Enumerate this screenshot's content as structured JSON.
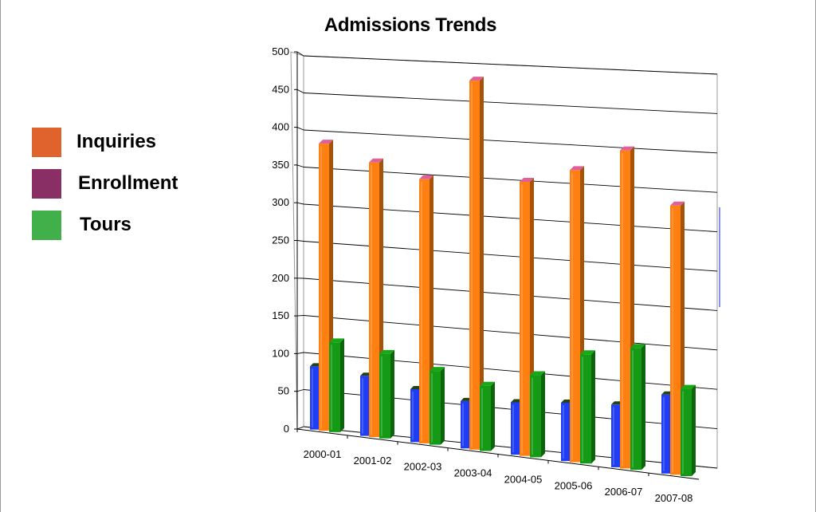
{
  "chart_data": {
    "type": "bar",
    "title": "Admissions Trends",
    "xlabel": "",
    "ylabel": "",
    "ylim": [
      0,
      500
    ],
    "yticks": [
      0,
      50,
      100,
      150,
      200,
      250,
      300,
      350,
      400,
      450,
      500
    ],
    "grid": true,
    "legend_position": "left",
    "categories": [
      "2000-01",
      "2001-02",
      "2002-03",
      "2003-04",
      "2004-05",
      "2005-06",
      "2006-07",
      "2007-08"
    ],
    "series": [
      {
        "name": "Enrollment",
        "color": "#1f3df5",
        "values": [
          85,
          80,
          70,
          62,
          68,
          75,
          80,
          100
        ]
      },
      {
        "name": "Inquiries",
        "color": "#ff7f10",
        "values": [
          385,
          365,
          348,
          482,
          355,
          375,
          405,
          340
        ]
      },
      {
        "name": "Tours",
        "color": "#149a14",
        "values": [
          120,
          112,
          97,
          85,
          106,
          140,
          155,
          110
        ]
      }
    ]
  },
  "legend": [
    {
      "label": "Inquiries",
      "color": "#e0622c"
    },
    {
      "label": "Enrollment",
      "color": "#8a2f66"
    },
    {
      "label": "Tours",
      "color": "#41b04a"
    }
  ]
}
